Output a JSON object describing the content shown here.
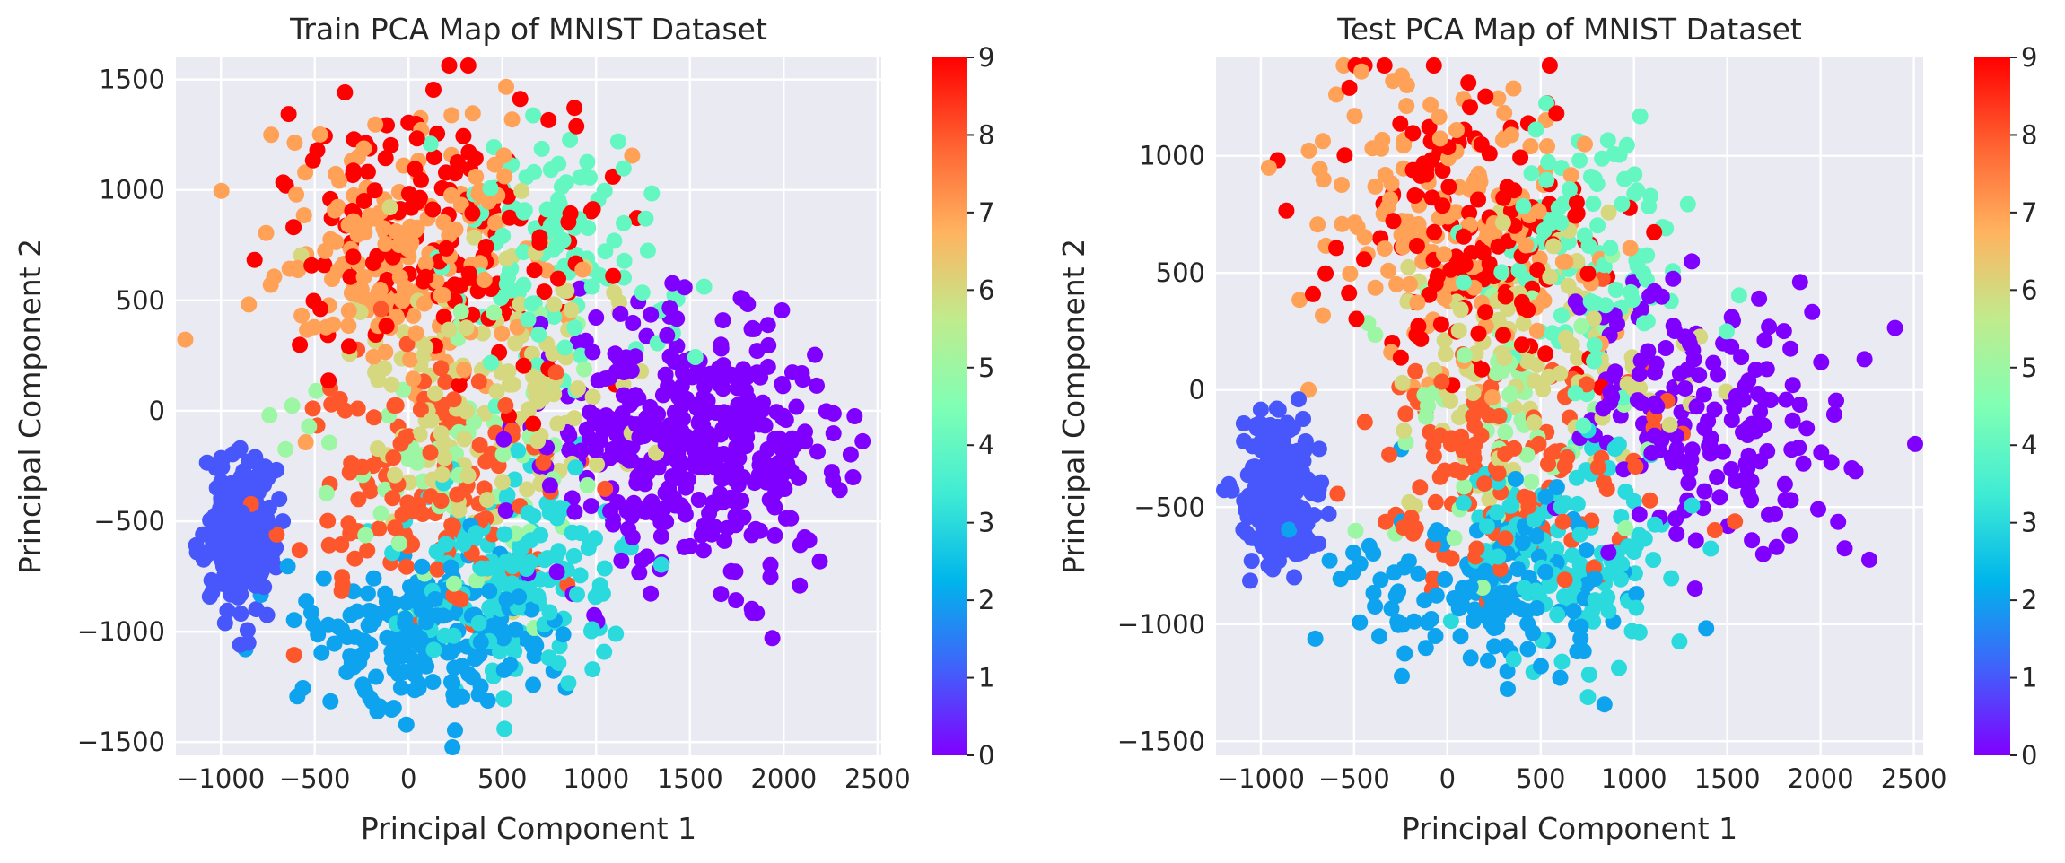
{
  "colors": {
    "plot_background": "#eaeaf2",
    "grid": "#ffffff",
    "colormap": "rainbow",
    "colormap_stops": [
      "#8000ff",
      "#4062fa",
      "#00b5eb",
      "#40ecd4",
      "#80ffb4",
      "#c0eb8d",
      "#ffb360",
      "#ff6231",
      "#ff0000"
    ]
  },
  "chart_data": [
    {
      "type": "scatter",
      "title": "Train PCA Map of MNIST Dataset",
      "xlabel": "Principal Component 1",
      "ylabel": "Principal Component 2",
      "xlim": [
        -1240,
        2520
      ],
      "ylim": [
        -1560,
        1600
      ],
      "xticks": [
        -1000,
        -500,
        0,
        500,
        1000,
        1500,
        2000,
        2500
      ],
      "xtick_labels": [
        "−1000",
        "−500",
        "0",
        "500",
        "1000",
        "1500",
        "2000",
        "2500"
      ],
      "yticks": [
        -1500,
        -1000,
        -500,
        0,
        500,
        1000,
        1500
      ],
      "ytick_labels": [
        "−1500",
        "−1000",
        "−500",
        "0",
        "500",
        "1000",
        "1500"
      ],
      "grid": true,
      "colorbar": {
        "min": 0,
        "max": 9,
        "ticks": [
          "0",
          "1",
          "2",
          "3",
          "4",
          "5",
          "6",
          "7",
          "8",
          "9"
        ]
      },
      "color_by": "digit label (0-9)",
      "clusters": [
        {
          "label": 0,
          "cx": 1650,
          "cy": -180,
          "sx": 330,
          "sy": 270,
          "n": 320
        },
        {
          "label": 0,
          "cx": 1100,
          "cy": -50,
          "sx": 250,
          "sy": 300,
          "n": 90
        },
        {
          "label": 1,
          "cx": -900,
          "cy": -550,
          "sx": 90,
          "sy": 170,
          "n": 260
        },
        {
          "label": 2,
          "cx": 150,
          "cy": -1000,
          "sx": 320,
          "sy": 180,
          "n": 200
        },
        {
          "label": 3,
          "cx": 600,
          "cy": -750,
          "sx": 300,
          "sy": 230,
          "n": 170
        },
        {
          "label": 4,
          "cx": 800,
          "cy": 700,
          "sx": 300,
          "sy": 300,
          "n": 120
        },
        {
          "label": 5,
          "cx": 200,
          "cy": -200,
          "sx": 450,
          "sy": 380,
          "n": 70
        },
        {
          "label": 6,
          "cx": 450,
          "cy": 150,
          "sx": 380,
          "sy": 330,
          "n": 140
        },
        {
          "label": 7,
          "cx": 0,
          "cy": 700,
          "sx": 380,
          "sy": 320,
          "n": 190
        },
        {
          "label": 8,
          "cx": 100,
          "cy": -350,
          "sx": 380,
          "sy": 280,
          "n": 140
        },
        {
          "label": 9,
          "cx": 100,
          "cy": 800,
          "sx": 400,
          "sy": 320,
          "n": 170
        }
      ]
    },
    {
      "type": "scatter",
      "title": "Test PCA Map of MNIST Dataset",
      "xlabel": "Principal Component 1",
      "ylabel": "Principal Component 2",
      "xlim": [
        -1240,
        2550
      ],
      "ylim": [
        -1560,
        1420
      ],
      "xticks": [
        -1000,
        -500,
        0,
        500,
        1000,
        1500,
        2000,
        2500
      ],
      "xtick_labels": [
        "−1000",
        "−500",
        "0",
        "500",
        "1000",
        "1500",
        "2000",
        "2500"
      ],
      "yticks": [
        -1500,
        -1000,
        -500,
        0,
        500,
        1000
      ],
      "ytick_labels": [
        "−1500",
        "−1000",
        "−500",
        "0",
        "500",
        "1000"
      ],
      "grid": true,
      "colorbar": {
        "min": 0,
        "max": 9,
        "ticks": [
          "0",
          "1",
          "2",
          "3",
          "4",
          "5",
          "6",
          "7",
          "8",
          "9"
        ]
      },
      "color_by": "digit label (0-9)",
      "clusters": [
        {
          "label": 0,
          "cx": 1550,
          "cy": -150,
          "sx": 350,
          "sy": 280,
          "n": 130
        },
        {
          "label": 0,
          "cx": 1050,
          "cy": 50,
          "sx": 260,
          "sy": 320,
          "n": 50
        },
        {
          "label": 1,
          "cx": -900,
          "cy": -450,
          "sx": 90,
          "sy": 170,
          "n": 240
        },
        {
          "label": 2,
          "cx": 200,
          "cy": -850,
          "sx": 340,
          "sy": 200,
          "n": 150
        },
        {
          "label": 3,
          "cx": 600,
          "cy": -700,
          "sx": 300,
          "sy": 230,
          "n": 130
        },
        {
          "label": 4,
          "cx": 700,
          "cy": 550,
          "sx": 320,
          "sy": 320,
          "n": 110
        },
        {
          "label": 5,
          "cx": 300,
          "cy": -150,
          "sx": 450,
          "sy": 350,
          "n": 60
        },
        {
          "label": 6,
          "cx": 500,
          "cy": 150,
          "sx": 380,
          "sy": 320,
          "n": 120
        },
        {
          "label": 7,
          "cx": 0,
          "cy": 700,
          "sx": 380,
          "sy": 330,
          "n": 160
        },
        {
          "label": 8,
          "cx": 300,
          "cy": -300,
          "sx": 400,
          "sy": 280,
          "n": 130
        },
        {
          "label": 9,
          "cx": 100,
          "cy": 650,
          "sx": 400,
          "sy": 320,
          "n": 150
        }
      ]
    }
  ]
}
